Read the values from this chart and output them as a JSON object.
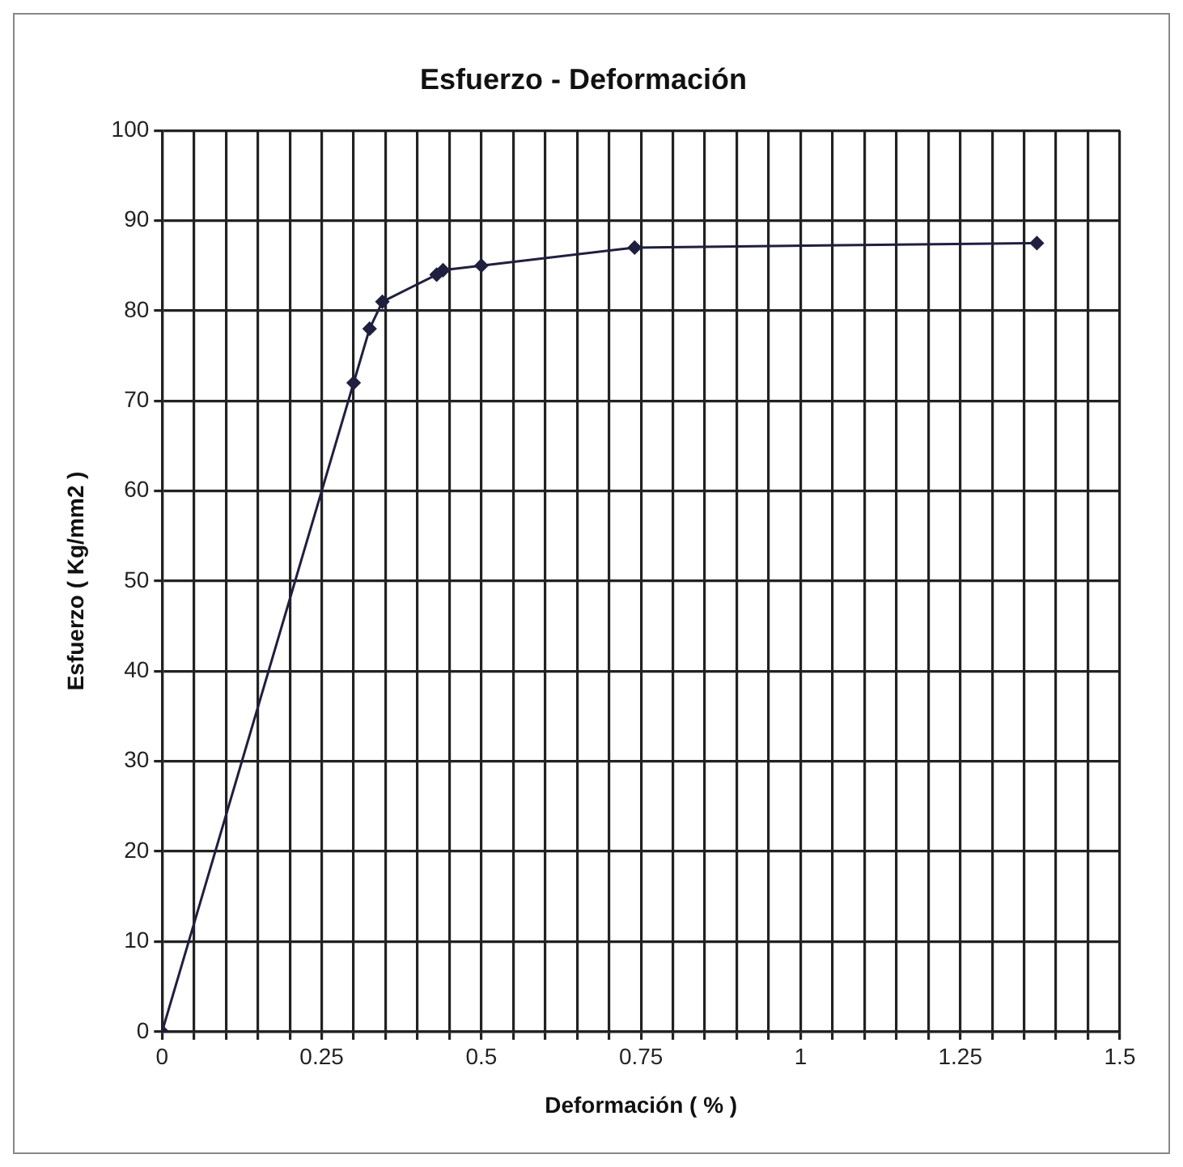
{
  "chart_data": {
    "type": "line",
    "title": "Esfuerzo - Deformación",
    "xlabel": "Deformación ( % )",
    "ylabel": "Esfuerzo ( Kg/mm2 )",
    "x": [
      0,
      0.3,
      0.325,
      0.345,
      0.43,
      0.44,
      0.5,
      0.74,
      1.37
    ],
    "series": [
      {
        "color": "#1f1f3f",
        "values": [
          0,
          72,
          78,
          81,
          84,
          84.5,
          85,
          87,
          87.5
        ]
      }
    ],
    "xlim": [
      0,
      1.5
    ],
    "xticks": [
      0,
      {
        "value": 0.05,
        "label": null
      },
      {
        "value": 0.1,
        "label": null
      },
      {
        "value": 0.15,
        "label": null
      },
      {
        "value": 0.2,
        "label": null
      },
      0.25,
      {
        "value": 0.3,
        "label": null
      },
      {
        "value": 0.35,
        "label": null
      },
      {
        "value": 0.4,
        "label": null
      },
      {
        "value": 0.45,
        "label": null
      },
      0.5,
      {
        "value": 0.55,
        "label": null
      },
      {
        "value": 0.6,
        "label": null
      },
      {
        "value": 0.65,
        "label": null
      },
      {
        "value": 0.7,
        "label": null
      },
      0.75,
      {
        "value": 0.8,
        "label": null
      },
      {
        "value": 0.85,
        "label": null
      },
      {
        "value": 0.9,
        "label": null
      },
      {
        "value": 0.95,
        "label": null
      },
      1,
      {
        "value": 1.05,
        "label": null
      },
      {
        "value": 1.1,
        "label": null
      },
      {
        "value": 1.15,
        "label": null
      },
      {
        "value": 1.2,
        "label": null
      },
      1.25,
      {
        "value": 1.3,
        "label": null
      },
      {
        "value": 1.35,
        "label": null
      },
      {
        "value": 1.4,
        "label": null
      },
      {
        "value": 1.45,
        "label": null
      },
      1.5
    ],
    "ylim": [
      0,
      100
    ],
    "yticks": [
      0,
      10,
      20,
      30,
      40,
      50,
      60,
      70,
      80,
      90,
      100
    ],
    "grid": true,
    "legend": false,
    "marker": "diamond",
    "line_style": "solid"
  }
}
